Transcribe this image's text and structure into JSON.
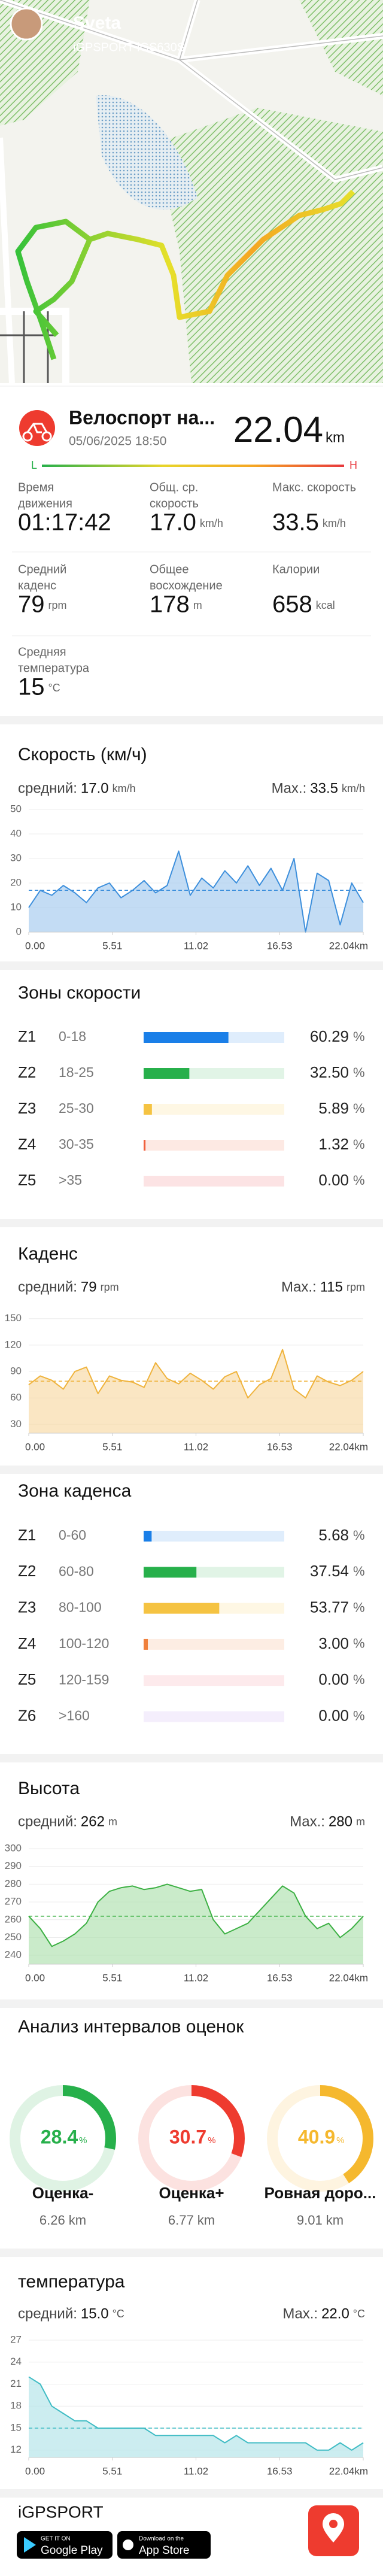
{
  "header": {
    "user": "Sveta",
    "device": "iGPSPORT iGS630S"
  },
  "activity": {
    "title": "Велоспорт на...",
    "date": "05/06/2025 18:50",
    "distance": "22.04",
    "distance_unit": "km",
    "low": "L",
    "high": "H"
  },
  "stats": [
    {
      "label": [
        "Время",
        "движения"
      ],
      "value": "01:17:42"
    },
    {
      "label": [
        "Общ. ср.",
        "скорость"
      ],
      "value": "17.0",
      "unit": "km/h"
    },
    {
      "label": [
        "Макс. скорость"
      ],
      "value": "33.5",
      "unit": "km/h"
    },
    {
      "label": [
        "Средний",
        "каденс"
      ],
      "value": "79",
      "unit": "rpm"
    },
    {
      "label": [
        "Общее",
        "восхождение"
      ],
      "value": "178",
      "unit": "m"
    },
    {
      "label": [
        "Калории"
      ],
      "value": "658",
      "unit": "kcal"
    },
    {
      "label": [
        "Средняя",
        "температура"
      ],
      "value": "15",
      "unit": "°C"
    }
  ],
  "chart_data": [
    {
      "type": "area",
      "title": "Скорость (км/ч)",
      "avg_text": "средний:",
      "max_text": "Max.:",
      "avg": {
        "value": 17,
        "label": "17.0"
      },
      "max": {
        "value": 33.5,
        "label": "33.5"
      },
      "unit": "km/h",
      "color": "#3d8fdc",
      "fill": "#a9cdf0",
      "x": [
        0,
        0.76,
        1.52,
        2.28,
        3.04,
        3.8,
        4.56,
        5.32,
        6.08,
        6.84,
        7.6,
        8.36,
        9.12,
        9.88,
        10.64,
        11.4,
        12.16,
        12.92,
        13.68,
        14.44,
        15.2,
        15.96,
        16.72,
        17.48,
        18.24,
        19,
        19.76,
        20.52,
        21.28,
        22.04
      ],
      "values": [
        10,
        17,
        15,
        19,
        16,
        12,
        18,
        20,
        14,
        17,
        21,
        16,
        19,
        33,
        15,
        22,
        18,
        25,
        20,
        27,
        19,
        26,
        17,
        30,
        0,
        24,
        21,
        3,
        20,
        12
      ],
      "xlim": [
        0,
        22.04
      ],
      "xticks": [
        {
          "value": 0,
          "label": "0.00"
        },
        5.51,
        11.02,
        16.53,
        {
          "value": 22.04,
          "label": "22.04km"
        }
      ],
      "ylim": [
        0,
        50
      ],
      "yticks": [
        0,
        10,
        20,
        30,
        40,
        50
      ],
      "grid": true
    },
    {
      "type": "zones",
      "title": "Зоны скорости",
      "unit": "%",
      "categories": [
        "Z1",
        "Z2",
        "Z3",
        "Z4",
        "Z5"
      ],
      "ranges": [
        "0-18",
        "18-25",
        "25-30",
        "30-35",
        ">35"
      ],
      "values": [
        60.29,
        32.5,
        5.89,
        1.32,
        0
      ],
      "value_labels": [
        "60.29",
        "32.50",
        "5.89",
        "1.32",
        "0.00"
      ],
      "colors": [
        "#1a7fe8",
        "#27b04b",
        "#f5c342",
        "#f0603c",
        "#e8383d"
      ]
    },
    {
      "type": "area",
      "title": "Каденс",
      "avg_text": "средний:",
      "max_text": "Max.:",
      "avg": {
        "value": 79,
        "label": "79"
      },
      "max": {
        "value": 115,
        "label": "115"
      },
      "unit": "rpm",
      "color": "#efb33c",
      "fill": "#f8dcaa",
      "x": [
        0,
        0.76,
        1.52,
        2.28,
        3.04,
        3.8,
        4.56,
        5.32,
        6.08,
        6.84,
        7.6,
        8.36,
        9.12,
        9.88,
        10.64,
        11.4,
        12.16,
        12.92,
        13.68,
        14.44,
        15.2,
        15.96,
        16.72,
        17.48,
        18.24,
        19,
        19.76,
        20.52,
        21.28,
        22.04
      ],
      "values": [
        75,
        85,
        80,
        70,
        90,
        95,
        65,
        85,
        80,
        78,
        72,
        100,
        82,
        76,
        88,
        80,
        70,
        84,
        90,
        60,
        75,
        82,
        115,
        70,
        60,
        85,
        78,
        74,
        80,
        90
      ],
      "xlim": [
        0,
        22.04
      ],
      "xticks": [
        {
          "value": 0,
          "label": "0.00"
        },
        5.51,
        11.02,
        16.53,
        {
          "value": 22.04,
          "label": "22.04km"
        }
      ],
      "ylim": [
        20,
        160
      ],
      "yticks": [
        30,
        60,
        90,
        120,
        150
      ],
      "grid": true
    },
    {
      "type": "zones",
      "title": "Зона каденса",
      "unit": "%",
      "categories": [
        "Z1",
        "Z2",
        "Z3",
        "Z4",
        "Z5",
        "Z6"
      ],
      "ranges": [
        "0-60",
        "60-80",
        "80-100",
        "100-120",
        "120-159",
        ">160"
      ],
      "values": [
        5.68,
        37.54,
        53.77,
        3,
        0,
        0
      ],
      "value_labels": [
        "5.68",
        "37.54",
        "53.77",
        "3.00",
        "0.00",
        "0.00"
      ],
      "colors": [
        "#1a7fe8",
        "#27b04b",
        "#f5c342",
        "#f0803c",
        "#f06a7a",
        "#b38ae8"
      ]
    },
    {
      "type": "area",
      "title": "Высота",
      "avg_text": "средний:",
      "max_text": "Max.:",
      "avg": {
        "value": 262,
        "label": "262"
      },
      "max": {
        "value": 280,
        "label": "280"
      },
      "unit": "m",
      "color": "#3cb043",
      "fill": "#b4e2b4",
      "x": [
        0,
        0.76,
        1.52,
        2.28,
        3.04,
        3.8,
        4.56,
        5.32,
        6.08,
        6.84,
        7.6,
        8.36,
        9.12,
        9.88,
        10.64,
        11.4,
        12.16,
        12.92,
        13.68,
        14.44,
        15.2,
        15.96,
        16.72,
        17.48,
        18.24,
        19,
        19.76,
        20.52,
        21.28,
        22.04
      ],
      "values": [
        262,
        255,
        245,
        248,
        252,
        258,
        270,
        276,
        278,
        279,
        277,
        278,
        280,
        278,
        276,
        277,
        260,
        252,
        255,
        258,
        265,
        272,
        279,
        275,
        262,
        255,
        258,
        250,
        255,
        262
      ],
      "xlim": [
        0,
        22.04
      ],
      "xticks": [
        {
          "value": 0,
          "label": "0.00"
        },
        5.51,
        11.02,
        16.53,
        {
          "value": 22.04,
          "label": "22.04km"
        }
      ],
      "ylim": [
        235,
        300
      ],
      "yticks": [
        240,
        250,
        260,
        270,
        280,
        290,
        300
      ],
      "grid": true
    },
    {
      "type": "rings",
      "title": "Анализ интервалов оценок",
      "unit": "%",
      "values": [
        28.4,
        30.7,
        40.9
      ],
      "categories": [
        "Оценка-",
        "Оценка+",
        "Ровная доро..."
      ],
      "distances": [
        "6.26 km",
        "6.77 km",
        "9.01 km"
      ],
      "colors": [
        "#27b04b",
        "#ee3b2f",
        "#f5b82e"
      ]
    },
    {
      "type": "area",
      "title": "температура",
      "avg_text": "средний:",
      "max_text": "Max.:",
      "avg": {
        "value": 15,
        "label": "15.0"
      },
      "max": {
        "value": 22,
        "label": "22.0"
      },
      "unit": "°C",
      "color": "#3fbcc4",
      "fill": "#b6e6ea",
      "x": [
        0,
        0.76,
        1.52,
        2.28,
        3.04,
        3.8,
        4.56,
        5.32,
        6.08,
        6.84,
        7.6,
        8.36,
        9.12,
        9.88,
        10.64,
        11.4,
        12.16,
        12.92,
        13.68,
        14.44,
        15.2,
        15.96,
        16.72,
        17.48,
        18.24,
        19,
        19.76,
        20.52,
        21.28,
        22.04
      ],
      "values": [
        22,
        21,
        18,
        17,
        16,
        16,
        15,
        15,
        15,
        15,
        15,
        14,
        14,
        14,
        14,
        14,
        14,
        13,
        14,
        13,
        13,
        13,
        13,
        13,
        13,
        12,
        12,
        13,
        12,
        13
      ],
      "xlim": [
        0,
        22.04
      ],
      "xticks": [
        {
          "value": 0,
          "label": "0.00"
        },
        5.51,
        11.02,
        16.53,
        {
          "value": 22.04,
          "label": "22.04km"
        }
      ],
      "ylim": [
        11,
        27
      ],
      "yticks": [
        12,
        15,
        18,
        21,
        24,
        27
      ],
      "grid": true
    }
  ],
  "footer": {
    "brand": "iGPSPORT",
    "google_small": "GET IT ON",
    "google": "Google Play",
    "apple_small": "Download on the",
    "apple": "App Store"
  }
}
